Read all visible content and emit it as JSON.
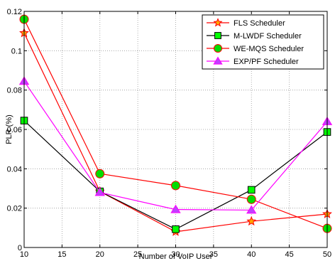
{
  "chart_data": {
    "type": "line",
    "title": "",
    "xlabel": "Number of VoIP User",
    "ylabel": "PLR (%)",
    "x": [
      10,
      20,
      30,
      40,
      50
    ],
    "xlim": [
      10,
      50
    ],
    "ylim": [
      0,
      0.12
    ],
    "xticks": [
      10,
      15,
      20,
      25,
      30,
      35,
      40,
      45,
      50
    ],
    "yticks": [
      0,
      0.02,
      0.04,
      0.06,
      0.08,
      0.1,
      0.12
    ],
    "xtick_labels": [
      "10",
      "15",
      "20",
      "25",
      "30",
      "35",
      "40",
      "45",
      "50"
    ],
    "ytick_labels": [
      "0",
      "0.02",
      "0.04",
      "0.06",
      "0.08",
      "0.1",
      "0.12"
    ],
    "grid": true,
    "legend_position": "top-right",
    "series": [
      {
        "name": "FLS Scheduler",
        "values": [
          0.109,
          0.0285,
          0.008,
          0.0133,
          0.017
        ],
        "line_color": "#ff0000",
        "marker": "star",
        "marker_fill": "#ffa500",
        "marker_edge": "#ff0000"
      },
      {
        "name": "M-LWDF Scheduler",
        "values": [
          0.0645,
          0.0285,
          0.0093,
          0.0293,
          0.0587
        ],
        "line_color": "#000000",
        "marker": "square",
        "marker_fill": "#00ff00",
        "marker_edge": "#000000"
      },
      {
        "name": "WE-MQS Scheduler",
        "values": [
          0.116,
          0.0375,
          0.0315,
          0.0245,
          0.0097
        ],
        "line_color": "#ff0000",
        "marker": "circle",
        "marker_fill": "#00dd00",
        "marker_edge": "#ff0000"
      },
      {
        "name": "EXP/PF Scheduler",
        "values": [
          0.0845,
          0.028,
          0.0193,
          0.019,
          0.064
        ],
        "line_color": "#ff00ff",
        "marker": "triangle",
        "marker_fill": "#c040ff",
        "marker_edge": "#ff00ff"
      }
    ]
  }
}
